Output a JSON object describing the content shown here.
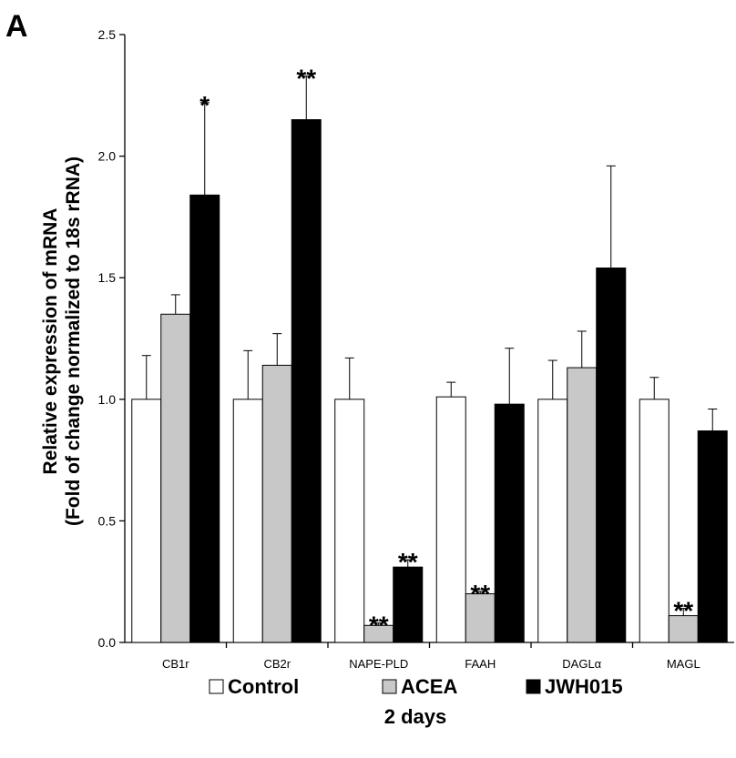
{
  "panel_label": "A",
  "subtitle": "2 days",
  "chart_data": {
    "type": "bar",
    "ylabel_line1": "Relative expression of mRNA",
    "ylabel_line2": "(Fold of change normalized to 18s rRNA)",
    "xlabel": "",
    "ylim": [
      0,
      2.5
    ],
    "yticks": [
      "0.0",
      "0.5",
      "1.0",
      "1.5",
      "2.0",
      "2.5"
    ],
    "categories": [
      "CB1r",
      "CB2r",
      "NAPE-PLD",
      "FAAH",
      "DAGLα",
      "MAGL"
    ],
    "legend_position": "bottom",
    "grid": false,
    "series": [
      {
        "name": "Control",
        "color": "#ffffff",
        "values": [
          1.0,
          1.0,
          1.0,
          1.01,
          1.0,
          1.0
        ],
        "errors": [
          0.18,
          0.2,
          0.17,
          0.06,
          0.16,
          0.09
        ],
        "significance": [
          "",
          "",
          "",
          "",
          "",
          ""
        ]
      },
      {
        "name": "ACEA",
        "color": "#c8c8c8",
        "values": [
          1.35,
          1.14,
          0.07,
          0.2,
          1.13,
          0.11
        ],
        "errors": [
          0.08,
          0.13,
          0.01,
          0.01,
          0.15,
          0.03
        ],
        "significance": [
          "",
          "",
          "**",
          "**",
          "",
          "**"
        ]
      },
      {
        "name": "JWH015",
        "color": "#000000",
        "values": [
          1.84,
          2.15,
          0.31,
          0.98,
          1.54,
          0.87
        ],
        "errors": [
          0.38,
          0.18,
          0.03,
          0.23,
          0.42,
          0.09
        ],
        "significance": [
          "*",
          "**",
          "**",
          "",
          "",
          ""
        ]
      }
    ]
  }
}
